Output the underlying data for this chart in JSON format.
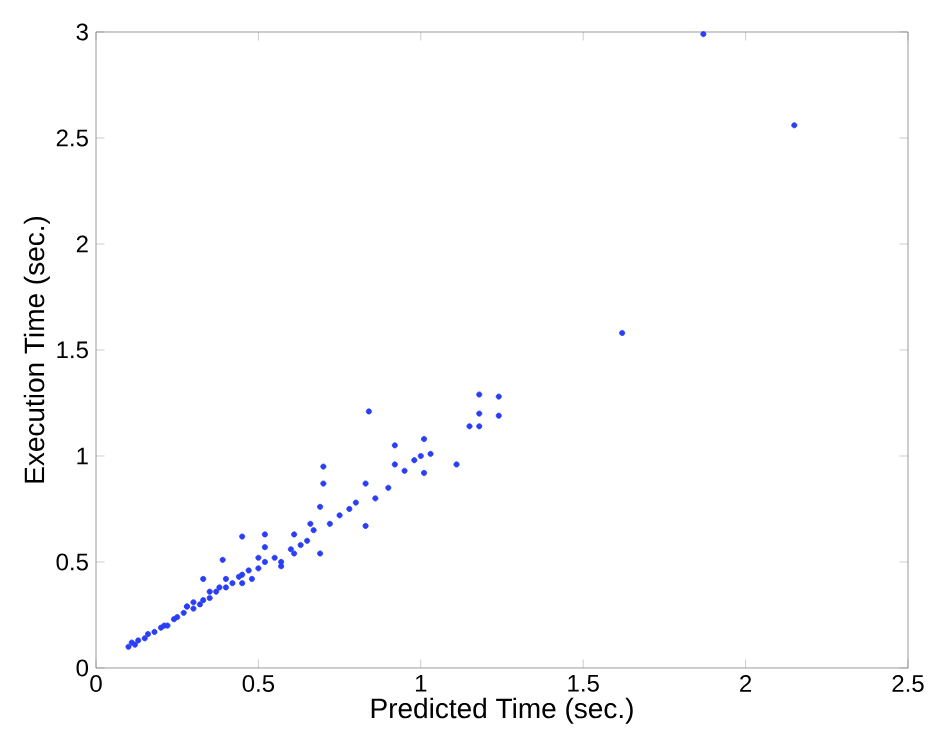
{
  "chart_data": {
    "type": "scatter",
    "xlabel": "Predicted Time (sec.)",
    "ylabel": "Execution Time (sec.)",
    "color": "#2a3ef5",
    "marker": "circle",
    "x": [
      0.1,
      0.11,
      0.12,
      0.13,
      0.15,
      0.16,
      0.18,
      0.2,
      0.21,
      0.22,
      0.24,
      0.25,
      0.27,
      0.28,
      0.3,
      0.3,
      0.32,
      0.33,
      0.35,
      0.35,
      0.37,
      0.39,
      0.4,
      0.4,
      0.42,
      0.44,
      0.45,
      0.45,
      0.47,
      0.48,
      0.5,
      0.5,
      0.52,
      0.52,
      0.55,
      0.57,
      0.6,
      0.61,
      0.61,
      0.65,
      0.67,
      0.69,
      0.69,
      0.7,
      0.7,
      0.72,
      0.75,
      0.78,
      0.8,
      0.83,
      0.83,
      0.84,
      0.86,
      0.9,
      0.92,
      0.92,
      0.95,
      0.98,
      1.0,
      1.01,
      1.01,
      1.03,
      1.11,
      1.15,
      1.18,
      1.18,
      1.18,
      1.24,
      1.24,
      1.62,
      1.87,
      2.15,
      0.28,
      0.33,
      0.38,
      0.45,
      0.52,
      0.57,
      0.63,
      0.66
    ],
    "values": [
      0.1,
      0.12,
      0.11,
      0.13,
      0.14,
      0.16,
      0.17,
      0.19,
      0.2,
      0.2,
      0.23,
      0.24,
      0.26,
      0.29,
      0.28,
      0.31,
      0.3,
      0.42,
      0.33,
      0.36,
      0.36,
      0.51,
      0.38,
      0.42,
      0.4,
      0.43,
      0.44,
      0.62,
      0.46,
      0.42,
      0.47,
      0.52,
      0.57,
      0.63,
      0.52,
      0.48,
      0.56,
      0.54,
      0.63,
      0.6,
      0.65,
      0.54,
      0.76,
      0.87,
      0.95,
      0.68,
      0.72,
      0.75,
      0.78,
      0.67,
      0.87,
      1.21,
      0.8,
      0.85,
      0.96,
      1.05,
      0.93,
      0.98,
      1.0,
      0.92,
      1.08,
      1.01,
      0.96,
      1.14,
      1.29,
      1.2,
      1.14,
      1.28,
      1.19,
      1.58,
      2.99,
      2.56,
      0.29,
      0.32,
      0.38,
      0.4,
      0.5,
      0.5,
      0.58,
      0.68
    ],
    "xlim": [
      0,
      2.5
    ],
    "ylim": [
      0,
      3
    ],
    "xticks": [
      0,
      0.5,
      1,
      1.5,
      2,
      2.5
    ],
    "yticks": [
      0,
      0.5,
      1,
      1.5,
      2,
      2.5,
      3
    ],
    "grid": false
  }
}
